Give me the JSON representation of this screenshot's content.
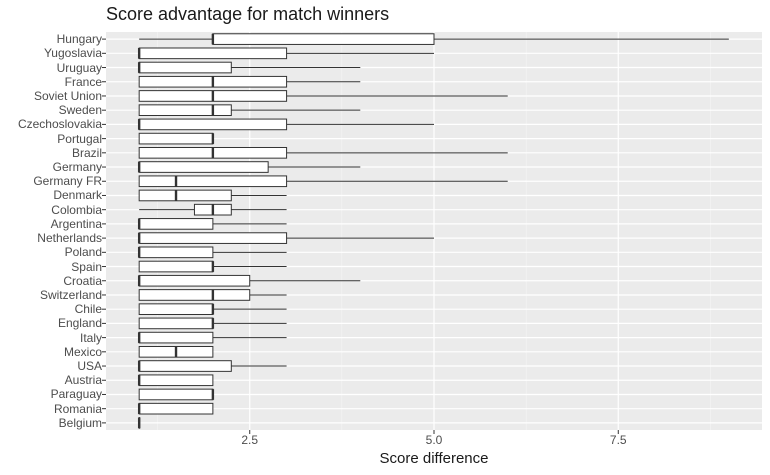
{
  "chart_data": {
    "type": "boxplot",
    "title": "Score advantage for match winners",
    "xlabel": "Score difference",
    "ylabel": "",
    "xlim": [
      0.55,
      9.45
    ],
    "x_ticks": [
      2.5,
      5.0,
      7.5
    ],
    "x_tick_labels": [
      "2.5",
      "5.0",
      "7.5"
    ],
    "grid": true,
    "categories": [
      "Hungary",
      "Yugoslavia",
      "Uruguay",
      "France",
      "Soviet Union",
      "Sweden",
      "Czechoslovakia",
      "Portugal",
      "Brazil",
      "Germany",
      "Germany FR",
      "Denmark",
      "Colombia",
      "Argentina",
      "Netherlands",
      "Poland",
      "Spain",
      "Croatia",
      "Switzerland",
      "Chile",
      "England",
      "Italy",
      "Mexico",
      "USA",
      "Austria",
      "Paraguay",
      "Romania",
      "Belgium"
    ],
    "boxes": [
      {
        "min": 1,
        "q1": 2,
        "median": 2,
        "q3": 5,
        "max": 9
      },
      {
        "min": 1,
        "q1": 1,
        "median": 1,
        "q3": 3,
        "max": 5
      },
      {
        "min": 1,
        "q1": 1,
        "median": 1,
        "q3": 2.25,
        "max": 4
      },
      {
        "min": 1,
        "q1": 1,
        "median": 2,
        "q3": 3,
        "max": 4
      },
      {
        "min": 1,
        "q1": 1,
        "median": 2,
        "q3": 3,
        "max": 6
      },
      {
        "min": 1,
        "q1": 1,
        "median": 2,
        "q3": 2.25,
        "max": 4
      },
      {
        "min": 1,
        "q1": 1,
        "median": 1,
        "q3": 3,
        "max": 5
      },
      {
        "min": 1,
        "q1": 1,
        "median": 2,
        "q3": 2,
        "max": 2
      },
      {
        "min": 1,
        "q1": 1,
        "median": 2,
        "q3": 3,
        "max": 6
      },
      {
        "min": 1,
        "q1": 1,
        "median": 1,
        "q3": 2.75,
        "max": 4
      },
      {
        "min": 1,
        "q1": 1,
        "median": 1.5,
        "q3": 3,
        "max": 6
      },
      {
        "min": 1,
        "q1": 1,
        "median": 1.5,
        "q3": 2.25,
        "max": 3
      },
      {
        "min": 1,
        "q1": 1.75,
        "median": 2,
        "q3": 2.25,
        "max": 3
      },
      {
        "min": 1,
        "q1": 1,
        "median": 1,
        "q3": 2,
        "max": 3
      },
      {
        "min": 1,
        "q1": 1,
        "median": 1,
        "q3": 3,
        "max": 5
      },
      {
        "min": 1,
        "q1": 1,
        "median": 1,
        "q3": 2,
        "max": 3
      },
      {
        "min": 1,
        "q1": 1,
        "median": 2,
        "q3": 2,
        "max": 3
      },
      {
        "min": 1,
        "q1": 1,
        "median": 1,
        "q3": 2.5,
        "max": 4
      },
      {
        "min": 1,
        "q1": 1,
        "median": 2,
        "q3": 2.5,
        "max": 3
      },
      {
        "min": 1,
        "q1": 1,
        "median": 2,
        "q3": 2,
        "max": 3
      },
      {
        "min": 1,
        "q1": 1,
        "median": 2,
        "q3": 2,
        "max": 3
      },
      {
        "min": 1,
        "q1": 1,
        "median": 1,
        "q3": 2,
        "max": 3
      },
      {
        "min": 1,
        "q1": 1,
        "median": 1.5,
        "q3": 2,
        "max": 2
      },
      {
        "min": 1,
        "q1": 1,
        "median": 1,
        "q3": 2.25,
        "max": 3
      },
      {
        "min": 1,
        "q1": 1,
        "median": 1,
        "q3": 2,
        "max": 2
      },
      {
        "min": 1,
        "q1": 1,
        "median": 2,
        "q3": 2,
        "max": 2
      },
      {
        "min": 1,
        "q1": 1,
        "median": 1,
        "q3": 2,
        "max": 2
      },
      {
        "min": 1,
        "q1": 1,
        "median": 1,
        "q3": 1,
        "max": 1
      }
    ],
    "colors": {
      "panel_background": "#ebebeb",
      "grid_major": "#ffffff",
      "grid_minor": "#f5f5f5",
      "box_fill": "#ffffff",
      "box_stroke": "#333333"
    }
  }
}
